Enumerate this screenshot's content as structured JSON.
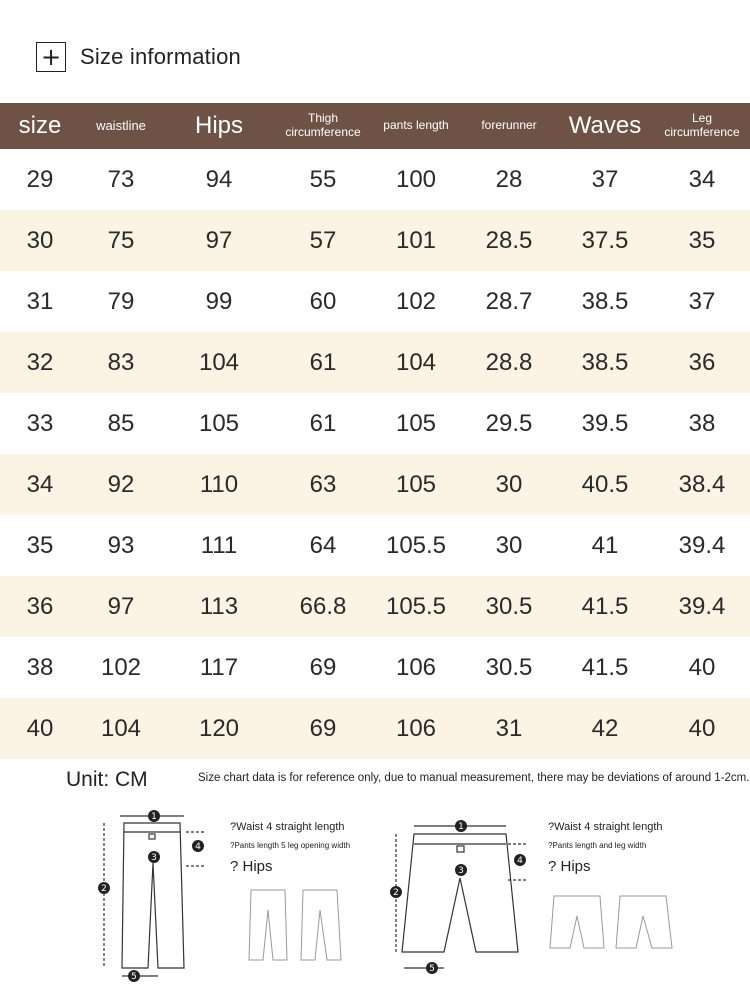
{
  "header": {
    "icon": "plus-icon",
    "title": "Size information"
  },
  "table": {
    "columns": [
      "size",
      "waistline",
      "Hips",
      "Thigh circumference",
      "pants length",
      "forerunner",
      "Waves",
      "Leg circumference"
    ],
    "rows": [
      [
        "29",
        "73",
        "94",
        "55",
        "100",
        "28",
        "37",
        "34"
      ],
      [
        "30",
        "75",
        "97",
        "57",
        "101",
        "28.5",
        "37.5",
        "35"
      ],
      [
        "31",
        "79",
        "99",
        "60",
        "102",
        "28.7",
        "38.5",
        "37"
      ],
      [
        "32",
        "83",
        "104",
        "61",
        "104",
        "28.8",
        "38.5",
        "36"
      ],
      [
        "33",
        "85",
        "105",
        "61",
        "105",
        "29.5",
        "39.5",
        "38"
      ],
      [
        "34",
        "92",
        "110",
        "63",
        "105",
        "30",
        "40.5",
        "38.4"
      ],
      [
        "35",
        "93",
        "111",
        "64",
        "105.5",
        "30",
        "41",
        "39.4"
      ],
      [
        "36",
        "97",
        "113",
        "66.8",
        "105.5",
        "30.5",
        "41.5",
        "39.4"
      ],
      [
        "38",
        "102",
        "117",
        "69",
        "106",
        "30.5",
        "41.5",
        "40"
      ],
      [
        "40",
        "104",
        "120",
        "69",
        "106",
        "31",
        "42",
        "40"
      ]
    ]
  },
  "footer": {
    "unit": "Unit: CM",
    "note": "Size chart data is for reference only, due to manual measurement, there may be deviations of around 1-2cm."
  },
  "diagrams": {
    "long": {
      "line1": "?Waist 4 straight length",
      "line2": "?Pants length 5 leg opening width",
      "line3": "? Hips"
    },
    "short": {
      "line1": "?Waist 4 straight length",
      "line2": "?Pants length and leg width",
      "line3": "? Hips"
    },
    "markers": [
      "1",
      "2",
      "3",
      "4",
      "5"
    ]
  },
  "colors": {
    "header_bg": "#6e5245",
    "row_shade": "#fbf3e3"
  }
}
